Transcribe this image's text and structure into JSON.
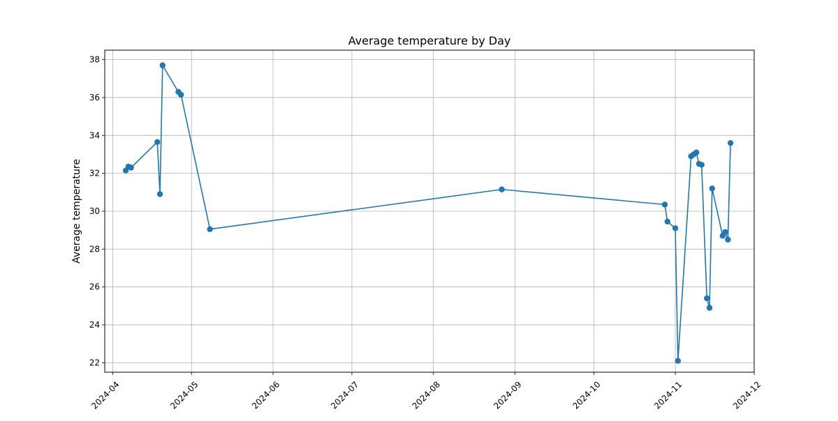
{
  "chart_data": {
    "type": "line",
    "title": "Average temperature by Day",
    "xlabel": "",
    "ylabel": "Average temperature",
    "x_axis_type": "date",
    "xlim": [
      "2024-03-29",
      "2024-12-01"
    ],
    "ylim": [
      21.5,
      38.5
    ],
    "x_ticks": [
      "2024-04-01",
      "2024-05-01",
      "2024-06-01",
      "2024-07-01",
      "2024-08-01",
      "2024-09-01",
      "2024-10-01",
      "2024-11-01",
      "2024-12-01"
    ],
    "x_tick_labels": [
      "2024-04",
      "2024-05",
      "2024-06",
      "2024-07",
      "2024-08",
      "2024-09",
      "2024-10",
      "2024-11",
      "2024-12"
    ],
    "y_ticks": [
      22,
      24,
      26,
      28,
      30,
      32,
      34,
      36,
      38
    ],
    "y_tick_labels": [
      "22",
      "24",
      "26",
      "28",
      "30",
      "32",
      "34",
      "36",
      "38"
    ],
    "grid": true,
    "x_tick_rotation_deg": 45,
    "series": [
      {
        "color": "#1f77b4",
        "marker": "circle",
        "points": [
          {
            "x": "2024-04-06",
            "y": 32.15
          },
          {
            "x": "2024-04-07",
            "y": 32.35
          },
          {
            "x": "2024-04-08",
            "y": 32.3
          },
          {
            "x": "2024-04-18",
            "y": 33.65
          },
          {
            "x": "2024-04-19",
            "y": 30.9
          },
          {
            "x": "2024-04-20",
            "y": 37.7
          },
          {
            "x": "2024-04-26",
            "y": 36.3
          },
          {
            "x": "2024-04-27",
            "y": 36.15
          },
          {
            "x": "2024-05-08",
            "y": 29.05
          },
          {
            "x": "2024-08-27",
            "y": 31.15
          },
          {
            "x": "2024-10-28",
            "y": 30.35
          },
          {
            "x": "2024-10-29",
            "y": 29.45
          },
          {
            "x": "2024-11-01",
            "y": 29.1
          },
          {
            "x": "2024-11-02",
            "y": 22.1
          },
          {
            "x": "2024-11-07",
            "y": 32.9
          },
          {
            "x": "2024-11-08",
            "y": 33.0
          },
          {
            "x": "2024-11-09",
            "y": 33.1
          },
          {
            "x": "2024-11-10",
            "y": 32.5
          },
          {
            "x": "2024-11-11",
            "y": 32.45
          },
          {
            "x": "2024-11-13",
            "y": 25.4
          },
          {
            "x": "2024-11-14",
            "y": 24.9
          },
          {
            "x": "2024-11-15",
            "y": 31.2
          },
          {
            "x": "2024-11-19",
            "y": 28.7
          },
          {
            "x": "2024-11-20",
            "y": 28.9
          },
          {
            "x": "2024-11-21",
            "y": 28.5
          },
          {
            "x": "2024-11-22",
            "y": 33.6
          }
        ]
      }
    ]
  }
}
